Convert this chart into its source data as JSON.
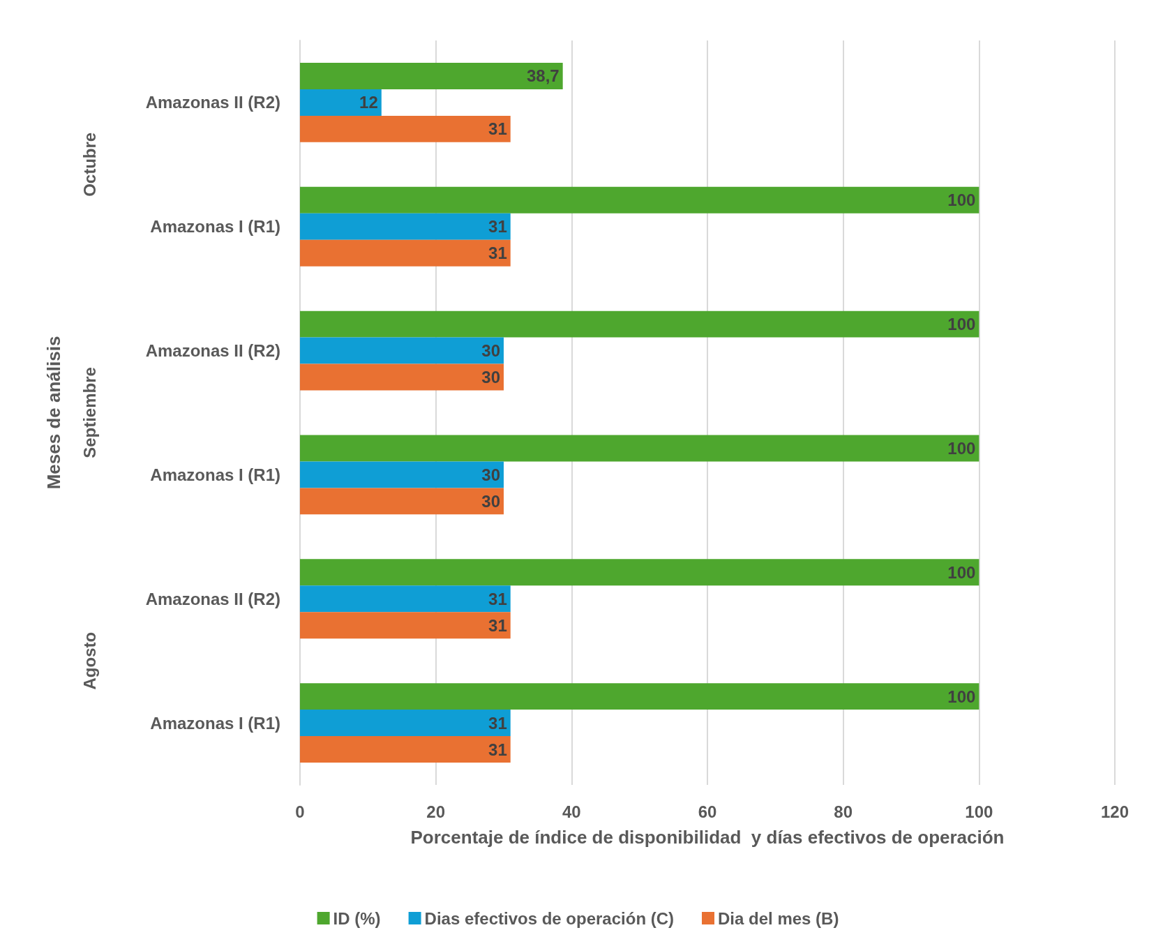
{
  "chart_data": {
    "type": "bar",
    "orientation": "horizontal",
    "xlabel": "Porcentaje de índice de disponibilidad  y días efectivos de operación",
    "ylabel": "Meses de análisis",
    "categories": [
      "Amazonas II (R2)",
      "Amazonas I (R1)",
      "Amazonas II (R2)",
      "Amazonas I (R1)",
      "Amazonas II (R2)",
      "Amazonas I (R1)"
    ],
    "annotations": [
      "Octubre",
      "Septiembre",
      "Agosto"
    ],
    "series": [
      {
        "name": "ID (%)",
        "color": "#4ea72e",
        "values": [
          38.7,
          100,
          100,
          100,
          100,
          100
        ],
        "value_labels": [
          "38,7",
          "100",
          "100",
          "100",
          "100",
          "100"
        ]
      },
      {
        "name": "Dias efectivos de operación (C)",
        "color": "#0f9ed5",
        "values": [
          12,
          31,
          30,
          30,
          31,
          31
        ],
        "value_labels": [
          "12",
          "31",
          "30",
          "30",
          "31",
          "31"
        ]
      },
      {
        "name": "Dia del mes (B)",
        "color": "#e97132",
        "values": [
          31,
          31,
          30,
          30,
          31,
          31
        ],
        "value_labels": [
          "31",
          "31",
          "30",
          "30",
          "31",
          "31"
        ]
      }
    ],
    "xlim": [
      0,
      120
    ],
    "xticks": [
      0,
      20,
      40,
      60,
      80,
      100,
      120
    ],
    "grid": "x",
    "legend": "bottom"
  }
}
